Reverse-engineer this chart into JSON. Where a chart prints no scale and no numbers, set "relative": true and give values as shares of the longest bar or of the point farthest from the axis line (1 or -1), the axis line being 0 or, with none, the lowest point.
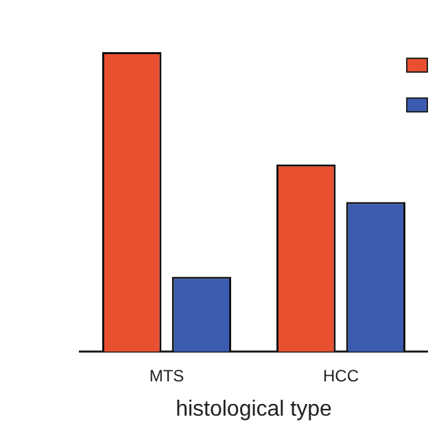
{
  "chart_data": {
    "type": "bar",
    "xlabel": "histological type",
    "categories": [
      "MTS",
      "HCC"
    ],
    "relative": true,
    "series": [
      {
        "color": "#e8502f",
        "values": [
          1,
          0.625
        ]
      },
      {
        "color": "#3a5bb0",
        "values": [
          0.25,
          0.5
        ]
      }
    ]
  }
}
